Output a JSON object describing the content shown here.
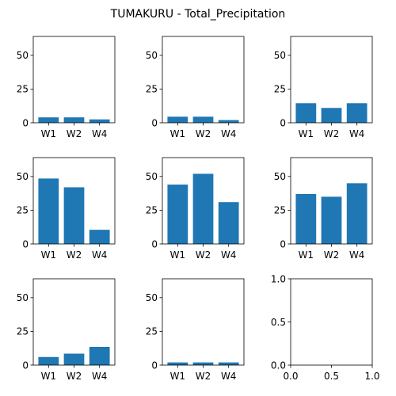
{
  "title": "TUMAKURU - Total_Precipitation",
  "bar_color": "#1f77b4",
  "chart_data": [
    {
      "type": "bar",
      "categories": [
        "W1",
        "W2",
        "W4"
      ],
      "values": [
        4,
        4,
        2.5
      ],
      "ylim": [
        0,
        64
      ],
      "yticks": [
        0,
        25,
        50
      ],
      "ytick_labels": [
        "0",
        "25",
        "50"
      ]
    },
    {
      "type": "bar",
      "categories": [
        "W1",
        "W2",
        "W4"
      ],
      "values": [
        4.5,
        4.5,
        2
      ],
      "ylim": [
        0,
        64
      ],
      "yticks": [
        0,
        25,
        50
      ],
      "ytick_labels": [
        "0",
        "25",
        "50"
      ]
    },
    {
      "type": "bar",
      "categories": [
        "W1",
        "W2",
        "W4"
      ],
      "values": [
        14.5,
        11,
        14.5
      ],
      "ylim": [
        0,
        64
      ],
      "yticks": [
        0,
        25,
        50
      ],
      "ytick_labels": [
        "0",
        "25",
        "50"
      ]
    },
    {
      "type": "bar",
      "categories": [
        "W1",
        "W2",
        "W4"
      ],
      "values": [
        48.5,
        42,
        10.5
      ],
      "ylim": [
        0,
        64
      ],
      "yticks": [
        0,
        25,
        50
      ],
      "ytick_labels": [
        "0",
        "25",
        "50"
      ]
    },
    {
      "type": "bar",
      "categories": [
        "W1",
        "W2",
        "W4"
      ],
      "values": [
        44,
        52,
        31
      ],
      "ylim": [
        0,
        64
      ],
      "yticks": [
        0,
        25,
        50
      ],
      "ytick_labels": [
        "0",
        "25",
        "50"
      ]
    },
    {
      "type": "bar",
      "categories": [
        "W1",
        "W2",
        "W4"
      ],
      "values": [
        37,
        35,
        45
      ],
      "ylim": [
        0,
        64
      ],
      "yticks": [
        0,
        25,
        50
      ],
      "ytick_labels": [
        "0",
        "25",
        "50"
      ]
    },
    {
      "type": "bar",
      "categories": [
        "W1",
        "W2",
        "W4"
      ],
      "values": [
        6,
        8.5,
        13.5
      ],
      "ylim": [
        0,
        64
      ],
      "yticks": [
        0,
        25,
        50
      ],
      "ytick_labels": [
        "0",
        "25",
        "50"
      ]
    },
    {
      "type": "bar",
      "categories": [
        "W1",
        "W2",
        "W4"
      ],
      "values": [
        2,
        2,
        2
      ],
      "ylim": [
        0,
        64
      ],
      "yticks": [
        0,
        25,
        50
      ],
      "ytick_labels": [
        "0",
        "25",
        "50"
      ]
    },
    {
      "type": "bar",
      "categories": [],
      "values": [],
      "xlim": [
        0,
        1
      ],
      "ylim": [
        0,
        1
      ],
      "xticks": [
        0,
        0.5,
        1
      ],
      "xtick_labels": [
        "0.0",
        "0.5",
        "1.0"
      ],
      "yticks": [
        0,
        0.5,
        1
      ],
      "ytick_labels": [
        "0.0",
        "0.5",
        "1.0"
      ]
    }
  ]
}
